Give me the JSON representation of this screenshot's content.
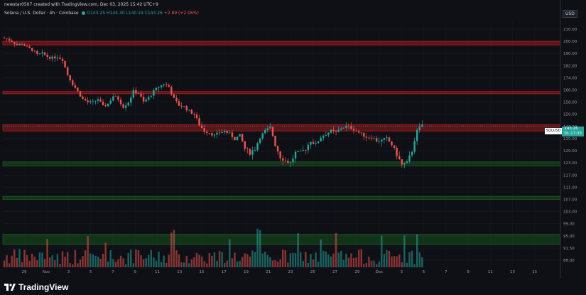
{
  "header": {
    "caption": "newstar0507 created with TradingView.com, Dec 03, 2025 15:42 UTC+9",
    "symbol_desc": "Solana / U.S. Dollar · 4h · Coinbase",
    "ohlc": "O143.25 H144.30 L140.19 C143.26",
    "change": "+2.89 (+2.06%)"
  },
  "price_tag": {
    "symbol": "SOLUSD",
    "price": "143.26",
    "countdown": "01:17:33"
  },
  "brand": {
    "name": "TradingView"
  },
  "colors": {
    "up": "#26a69a",
    "down": "#ef5350",
    "background": "#0e1016",
    "zone_red": "#b71c1c",
    "zone_green": "#1b5e20"
  },
  "chart_data": {
    "type": "candlestick",
    "symbol": "SOLUSD",
    "timeframe": "4h",
    "currency": "USD",
    "ylim": [
      85,
      214
    ],
    "y_ticks": [
      "210.00",
      "200.00",
      "190.00",
      "182.00",
      "174.00",
      "166.00",
      "158.00",
      "150.00",
      "143.00",
      "135.00",
      "129.00",
      "123.00",
      "117.00",
      "111.00",
      "107.00",
      "103.00",
      "99.00",
      "95.00",
      "91.50",
      "88.00"
    ],
    "x_ticks": [
      "29",
      "Nov",
      "3",
      "5",
      "7",
      "9",
      "11",
      "13",
      "15",
      "17",
      "19",
      "21",
      "23",
      "25",
      "27",
      "29",
      "Dec",
      "3",
      "5",
      "7",
      "9",
      "11",
      "13",
      "15"
    ],
    "last_price": 143.26,
    "zones": [
      {
        "color": "red",
        "low": 197,
        "high": 200
      },
      {
        "color": "red",
        "low": 163.5,
        "high": 165
      },
      {
        "color": "red",
        "low": 140,
        "high": 144
      },
      {
        "color": "green",
        "low": 121.5,
        "high": 123.5
      },
      {
        "color": "green",
        "low": 107,
        "high": 108
      },
      {
        "color": "green",
        "low": 92.5,
        "high": 95.5
      }
    ],
    "price_path": [
      203,
      202,
      200,
      197,
      198,
      195,
      193,
      189,
      190,
      188,
      187,
      188,
      186,
      176,
      170,
      165,
      160,
      158,
      158,
      160,
      155,
      157,
      162,
      160,
      155,
      158,
      165,
      164,
      158,
      161,
      165,
      168,
      170,
      168,
      160,
      156,
      155,
      152,
      150,
      144,
      140,
      139,
      137,
      139,
      140,
      138,
      135,
      137,
      130,
      128,
      130,
      136,
      140,
      142,
      132,
      126,
      124,
      123,
      128,
      128,
      130,
      134,
      132,
      136,
      138,
      140,
      139,
      142,
      143,
      142,
      140,
      138,
      136,
      136,
      134,
      134,
      135,
      132,
      127,
      122,
      123,
      129,
      140,
      144
    ]
  }
}
